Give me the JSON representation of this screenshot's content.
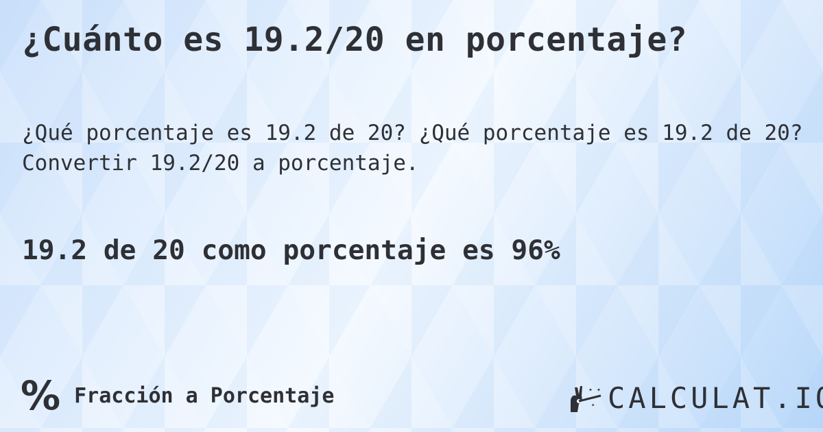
{
  "title": "¿Cuánto es 19.2/20 en porcentaje?",
  "description": "¿Qué porcentaje es 19.2 de 20? ¿Qué porcentaje es 19.2 de 20? Convertir 19.2/20 a porcentaje.",
  "result": "19.2 de 20 como porcentaje es 96%",
  "footer": {
    "icon": "percent-icon",
    "icon_glyph": "%",
    "category": "Fracción a Porcentaje"
  },
  "logo": {
    "text": "CALCULAT.IO",
    "icon": "magic-hand-wand-icon"
  }
}
